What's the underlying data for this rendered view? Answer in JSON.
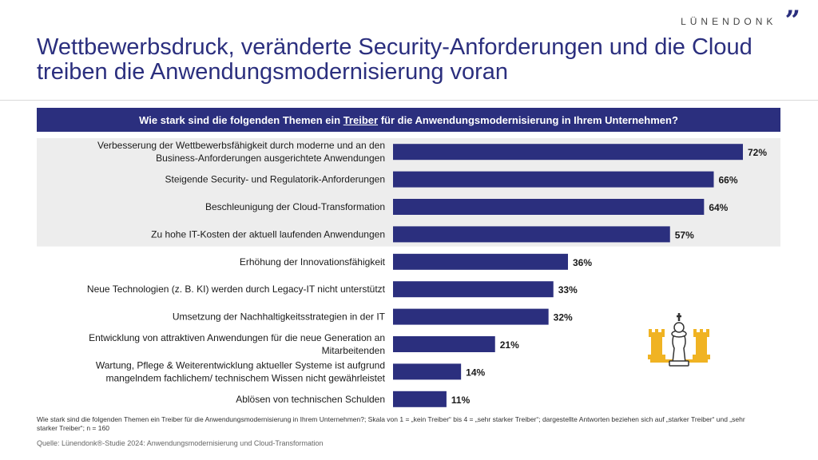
{
  "brand": {
    "name": "LÜNENDONK",
    "quote_glyph": "”"
  },
  "title": "Wettbewerbsdruck, veränderte Security-Anforderungen und die Cloud treiben die Anwendungsmodernisierung voran",
  "question": {
    "before": "Wie stark sind die folgenden Themen ein ",
    "underlined": "Treiber",
    "after": " für die Anwendungsmodernisierung in Ihrem Unternehmen?"
  },
  "footnote": "Wie stark sind die folgenden Themen ein Treiber für die Anwendungsmodernisierung in Ihrem Unternehmen?; Skala von 1 = „kein Treiber“ bis 4 = „sehr starker Treiber“; dargestellte Antworten beziehen sich auf „starker Treiber“ und „sehr starker Treiber“; n = 160",
  "source": "Quelle: Lünendonk®-Studie 2024: Anwendungsmodernisierung und Cloud-Transformation",
  "colors": {
    "bar": "#2b2f7e",
    "highlight_bg": "#ededed",
    "accent": "#f0b323"
  },
  "icon": "chess-king-icon",
  "chart_data": {
    "type": "bar",
    "orientation": "horizontal",
    "unit": "%",
    "highlighted_count": 4,
    "categories": [
      [
        "Verbesserung der Wettbewerbsfähigkeit durch moderne und an den",
        "Business-Anforderungen ausgerichtete Anwendungen"
      ],
      [
        "Steigende Security- und Regulatorik-Anforderungen"
      ],
      [
        "Beschleunigung der Cloud-Transformation"
      ],
      [
        "Zu hohe IT-Kosten der aktuell laufenden Anwendungen"
      ],
      [
        "Erhöhung der Innovationsfähigkeit"
      ],
      [
        "Neue Technologien (z. B. KI) werden durch Legacy-IT nicht unterstützt"
      ],
      [
        "Umsetzung der Nachhaltigkeitsstrategien in der IT"
      ],
      [
        "Entwicklung von attraktiven Anwendungen für die neue Generation an",
        "Mitarbeitenden"
      ],
      [
        "Wartung, Pflege & Weiterentwicklung aktueller Systeme ist aufgrund",
        "mangelndem fachlichem/ technischem Wissen nicht gewährleistet"
      ],
      [
        "Ablösen von technischen Schulden"
      ]
    ],
    "values": [
      72,
      66,
      64,
      57,
      36,
      33,
      32,
      21,
      14,
      11
    ],
    "xlim": [
      0,
      80
    ]
  }
}
